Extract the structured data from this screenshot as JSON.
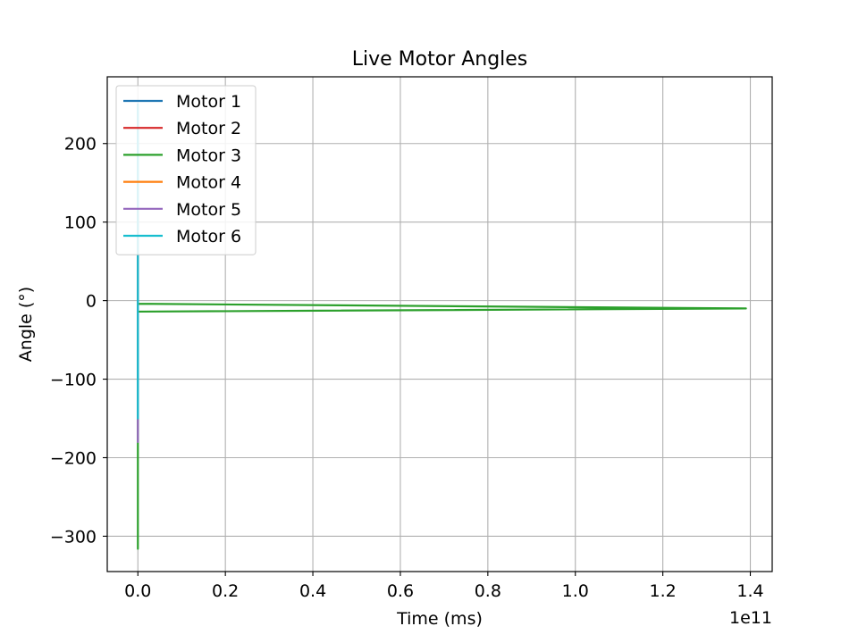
{
  "chart_data": {
    "type": "line",
    "title": "Live Motor Angles",
    "xlabel": "Time (ms)",
    "ylabel": "Angle (°)",
    "x_offset_label": "1e11",
    "xlim": [
      -0.07,
      1.45
    ],
    "ylim": [
      -345,
      285
    ],
    "x_ticks": [
      0.0,
      0.2,
      0.4,
      0.6,
      0.8,
      1.0,
      1.2,
      1.4
    ],
    "x_tick_labels": [
      "0.0",
      "0.2",
      "0.4",
      "0.6",
      "0.8",
      "1.0",
      "1.2",
      "1.4"
    ],
    "y_ticks": [
      200,
      100,
      0,
      -100,
      -200,
      -300
    ],
    "y_tick_labels": [
      "200",
      "100",
      "0",
      "−100",
      "−200",
      "−300"
    ],
    "grid": true,
    "legend_position": "top-left",
    "series": [
      {
        "name": "Motor 1",
        "color": "#1f77b4",
        "points": [
          [
            0.0,
            10
          ],
          [
            0.0,
            -100
          ],
          [
            0.0,
            250
          ],
          [
            0.0,
            5
          ]
        ]
      },
      {
        "name": "Motor 2",
        "color": "#d62728",
        "points": [
          [
            0.0,
            5
          ],
          [
            0.0,
            -60
          ],
          [
            0.0,
            90
          ],
          [
            0.0,
            0
          ]
        ]
      },
      {
        "name": "Motor 3",
        "color": "#2ca02c",
        "points": [
          [
            0.0,
            10
          ],
          [
            0.0,
            -315
          ],
          [
            0.0,
            -180
          ],
          [
            0.0,
            -14
          ],
          [
            1.39,
            -10
          ],
          [
            0.0,
            -4
          ],
          [
            0.0,
            -316
          ],
          [
            0.0,
            0
          ]
        ]
      },
      {
        "name": "Motor 4",
        "color": "#ff7f0e",
        "points": [
          [
            0.0,
            0
          ],
          [
            0.0,
            120
          ],
          [
            0.0,
            -40
          ],
          [
            0.0,
            30
          ]
        ]
      },
      {
        "name": "Motor 5",
        "color": "#9467bd",
        "points": [
          [
            0.0,
            -125
          ],
          [
            0.0,
            -180
          ],
          [
            0.0,
            110
          ],
          [
            0.0,
            20
          ]
        ]
      },
      {
        "name": "Motor 6",
        "color": "#17becf",
        "points": [
          [
            0.0,
            60
          ],
          [
            0.0,
            -40
          ],
          [
            0.0,
            250
          ],
          [
            0.0,
            -150
          ],
          [
            0.0,
            80
          ]
        ]
      }
    ]
  }
}
